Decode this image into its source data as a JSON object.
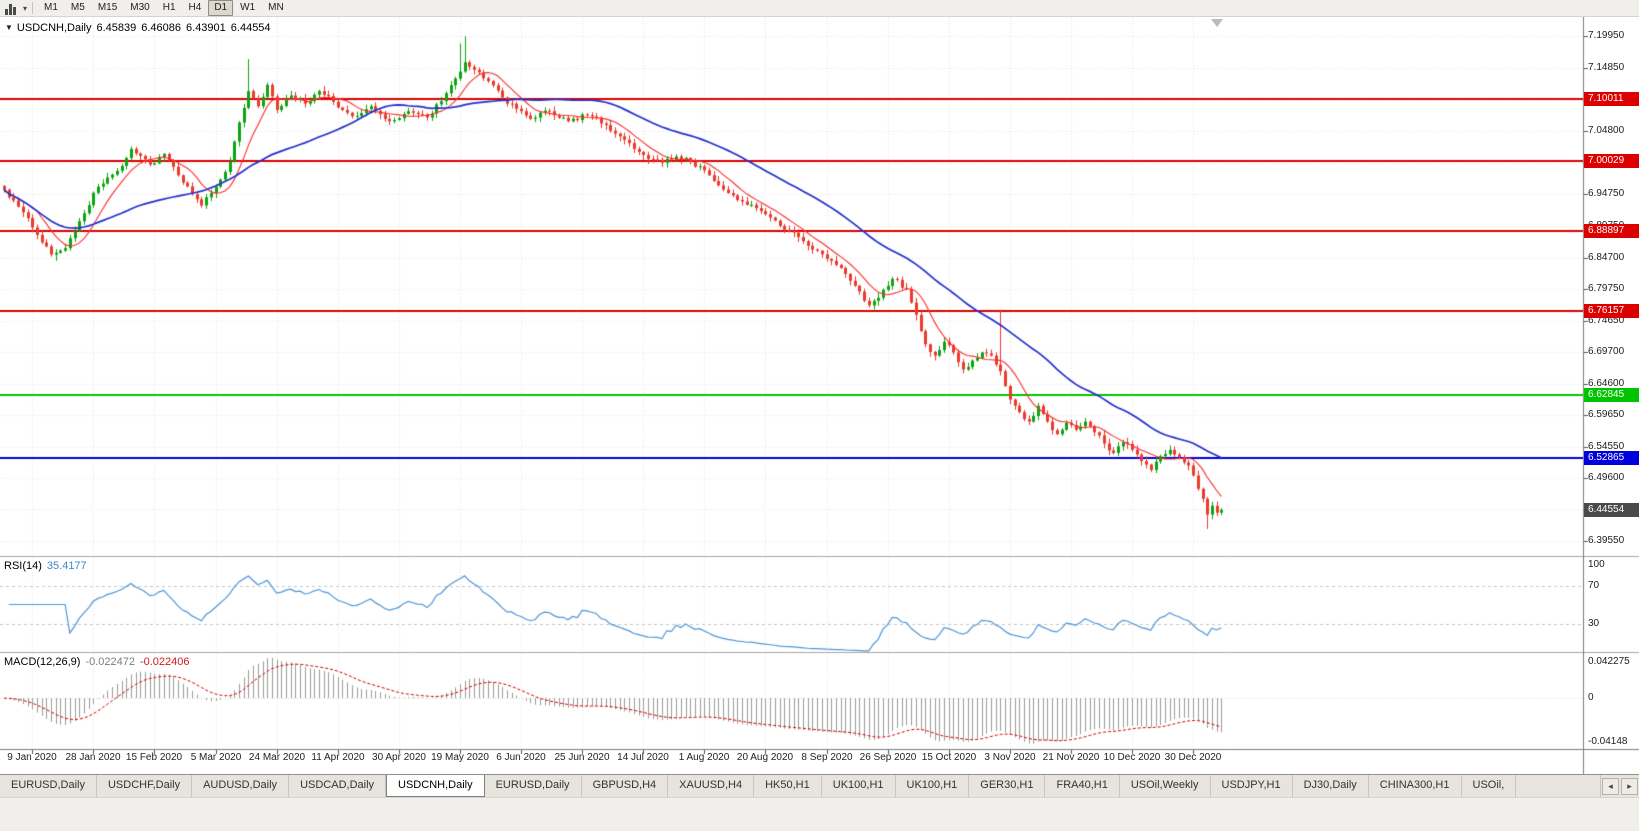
{
  "window": {
    "toolbar": {
      "timeframes": [
        "M1",
        "M5",
        "M15",
        "M30",
        "H1",
        "H4",
        "D1",
        "W1",
        "MN"
      ],
      "active_timeframe": "D1",
      "chart_type_icon": "bar-chart-icon",
      "dropdown_icon": "▾"
    },
    "tabs": {
      "items": [
        "EURUSD,Daily",
        "USDCHF,Daily",
        "AUDUSD,Daily",
        "USDCAD,Daily",
        "USDCNH,Daily",
        "EURUSD,Daily",
        "GBPUSD,H4",
        "XAUUSD,H4",
        "HK50,H1",
        "UK100,H1",
        "UK100,H1",
        "GER30,H1",
        "FRA40,H1",
        "USOil,Weekly",
        "USDJPY,H1",
        "DJ30,Daily",
        "CHINA300,H1",
        "USOil,"
      ],
      "active_index": 4,
      "scroll_left": "◂",
      "scroll_right": "▸"
    }
  },
  "chart_data": {
    "type": "candlestick",
    "symbol": "USDCNH",
    "timeframe": "Daily",
    "title_overlay": {
      "menu_icon": "▼",
      "symbol": "USDCNH,Daily",
      "open": "6.45839",
      "high": "6.46086",
      "low": "6.43901",
      "close": "6.44554"
    },
    "bars": 260,
    "ylim": [
      6.372,
      7.23
    ],
    "up_color": "#0fa312",
    "down_color": "#ec3a2d",
    "grid_color": "#e9e9e9",
    "close_anchors": [
      [
        0,
        6.955
      ],
      [
        3,
        6.928
      ],
      [
        6,
        6.895
      ],
      [
        10,
        6.852
      ],
      [
        13,
        6.862
      ],
      [
        16,
        6.905
      ],
      [
        20,
        6.96
      ],
      [
        24,
        6.985
      ],
      [
        27,
        7.02
      ],
      [
        31,
        6.995
      ],
      [
        34,
        7.012
      ],
      [
        37,
        6.978
      ],
      [
        40,
        6.948
      ],
      [
        42,
        6.93
      ],
      [
        45,
        6.96
      ],
      [
        48,
        7.0
      ],
      [
        50,
        7.062
      ],
      [
        52,
        7.112
      ],
      [
        54,
        7.088
      ],
      [
        56,
        7.122
      ],
      [
        58,
        7.082
      ],
      [
        61,
        7.105
      ],
      [
        64,
        7.092
      ],
      [
        67,
        7.112
      ],
      [
        70,
        7.095
      ],
      [
        74,
        7.072
      ],
      [
        78,
        7.088
      ],
      [
        82,
        7.064
      ],
      [
        86,
        7.08
      ],
      [
        90,
        7.07
      ],
      [
        93,
        7.096
      ],
      [
        96,
        7.132
      ],
      [
        98,
        7.158
      ],
      [
        100,
        7.146
      ],
      [
        103,
        7.128
      ],
      [
        106,
        7.102
      ],
      [
        109,
        7.084
      ],
      [
        112,
        7.068
      ],
      [
        116,
        7.08
      ],
      [
        120,
        7.064
      ],
      [
        124,
        7.074
      ],
      [
        128,
        7.058
      ],
      [
        131,
        7.04
      ],
      [
        134,
        7.02
      ],
      [
        137,
        7.004
      ],
      [
        140,
        6.998
      ],
      [
        143,
        7.008
      ],
      [
        146,
        6.999
      ],
      [
        149,
        6.986
      ],
      [
        152,
        6.962
      ],
      [
        155,
        6.946
      ],
      [
        158,
        6.931
      ],
      [
        161,
        6.921
      ],
      [
        164,
        6.906
      ],
      [
        167,
        6.889
      ],
      [
        170,
        6.873
      ],
      [
        173,
        6.858
      ],
      [
        176,
        6.842
      ],
      [
        179,
        6.821
      ],
      [
        182,
        6.793
      ],
      [
        184,
        6.771
      ],
      [
        186,
        6.783
      ],
      [
        189,
        6.813
      ],
      [
        192,
        6.797
      ],
      [
        194,
        6.756
      ],
      [
        196,
        6.709
      ],
      [
        198,
        6.691
      ],
      [
        200,
        6.713
      ],
      [
        202,
        6.696
      ],
      [
        204,
        6.669
      ],
      [
        206,
        6.683
      ],
      [
        208,
        6.696
      ],
      [
        210,
        6.691
      ],
      [
        212,
        6.666
      ],
      [
        214,
        6.621
      ],
      [
        216,
        6.601
      ],
      [
        218,
        6.586
      ],
      [
        220,
        6.611
      ],
      [
        222,
        6.586
      ],
      [
        224,
        6.566
      ],
      [
        226,
        6.584
      ],
      [
        228,
        6.573
      ],
      [
        230,
        6.586
      ],
      [
        232,
        6.569
      ],
      [
        234,
        6.551
      ],
      [
        236,
        6.536
      ],
      [
        238,
        6.553
      ],
      [
        240,
        6.541
      ],
      [
        242,
        6.523
      ],
      [
        244,
        6.509
      ],
      [
        246,
        6.531
      ],
      [
        248,
        6.541
      ],
      [
        250,
        6.529
      ],
      [
        252,
        6.516
      ],
      [
        254,
        6.479
      ],
      [
        255,
        6.463
      ],
      [
        256,
        6.438
      ],
      [
        257,
        6.452
      ],
      [
        258,
        6.441
      ],
      [
        259,
        6.4455
      ]
    ],
    "wick_overrides": [
      {
        "bar": 11,
        "low": 6.842
      },
      {
        "bar": 52,
        "high": 7.163
      },
      {
        "bar": 97,
        "high": 7.188
      },
      {
        "bar": 98,
        "high": 7.1995
      },
      {
        "bar": 194,
        "low": 6.747
      },
      {
        "bar": 212,
        "high": 6.764
      },
      {
        "bar": 256,
        "low": 6.415
      }
    ],
    "moving_averages": [
      {
        "period": 8,
        "color": "#ff2d2d",
        "width": 1.1
      },
      {
        "period": 34,
        "color": "#2330cf",
        "width": 1.7
      }
    ],
    "horizontal_lines": [
      {
        "price": 7.10011,
        "label": "7.10011",
        "color": "#dd0000"
      },
      {
        "price": 7.00029,
        "label": "7.00029",
        "color": "#dd0000"
      },
      {
        "price": 6.88897,
        "label": "6.88897",
        "color": "#dd0000"
      },
      {
        "price": 6.76157,
        "label": "6.76157",
        "color": "#dd0000"
      },
      {
        "price": 6.62845,
        "label": "6.62845",
        "color": "#00c400"
      },
      {
        "price": 6.52865,
        "label": "6.52865",
        "color": "#0000dd"
      }
    ],
    "current_price": {
      "value": 6.44554,
      "label": "6.44554",
      "color": "#4a4a4a"
    },
    "price_axis_labels": [
      "7.19950",
      "7.14850",
      "7.09800",
      "7.04800",
      "6.99700",
      "6.94750",
      "6.89750",
      "6.84700",
      "6.79750",
      "6.74650",
      "6.69700",
      "6.64600",
      "6.59650",
      "6.54550",
      "6.49600",
      "6.44650",
      "6.39550"
    ],
    "x_labels": [
      {
        "bar": 6,
        "label": "9 Jan 2020"
      },
      {
        "bar": 19,
        "label": "28 Jan 2020"
      },
      {
        "bar": 32,
        "label": "15 Feb 2020"
      },
      {
        "bar": 45,
        "label": "5 Mar 2020"
      },
      {
        "bar": 58,
        "label": "24 Mar 2020"
      },
      {
        "bar": 71,
        "label": "11 Apr 2020"
      },
      {
        "bar": 84,
        "label": "30 Apr 2020"
      },
      {
        "bar": 97,
        "label": "19 May 2020"
      },
      {
        "bar": 110,
        "label": "6 Jun 2020"
      },
      {
        "bar": 123,
        "label": "25 Jun 2020"
      },
      {
        "bar": 136,
        "label": "14 Jul 2020"
      },
      {
        "bar": 149,
        "label": "1 Aug 2020"
      },
      {
        "bar": 162,
        "label": "20 Aug 2020"
      },
      {
        "bar": 175,
        "label": "8 Sep 2020"
      },
      {
        "bar": 188,
        "label": "26 Sep 2020"
      },
      {
        "bar": 201,
        "label": "15 Oct 2020"
      },
      {
        "bar": 214,
        "label": "3 Nov 2020"
      },
      {
        "bar": 227,
        "label": "21 Nov 2020"
      },
      {
        "bar": 240,
        "label": "10 Dec 2020"
      },
      {
        "bar": 253,
        "label": "30 Dec 2020"
      }
    ],
    "indicators": [
      {
        "name": "RSI",
        "label": "RSI(14)",
        "value": "35.4177",
        "period": 14,
        "levels": [
          70,
          30
        ],
        "scale_labels": [
          "100",
          "70",
          "30"
        ],
        "line_color": "#4f97d7",
        "level_color": "#c8c8c8"
      },
      {
        "name": "MACD",
        "label": "MACD(12,26,9)",
        "values": [
          "-0.022472",
          "-0.022406"
        ],
        "scale_labels": [
          "0.042275",
          "0",
          "-0.04148"
        ],
        "histogram_color": "#9b9b9b",
        "signal_color": "#d40000"
      }
    ]
  }
}
